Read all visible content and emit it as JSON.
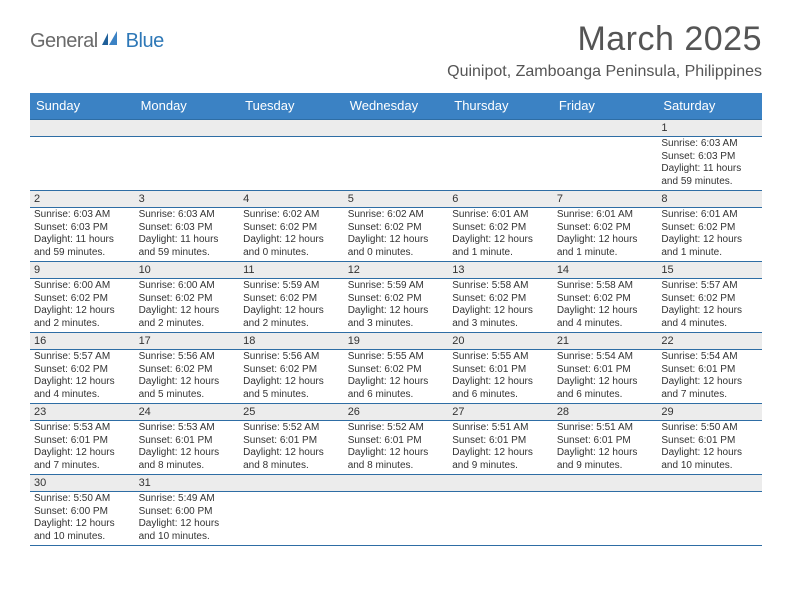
{
  "logo": {
    "text1": "General",
    "text2": "Blue"
  },
  "title": "March 2025",
  "location": "Quinipot, Zamboanga Peninsula, Philippines",
  "colors": {
    "header_bg": "#3b82c4",
    "header_text": "#ffffff",
    "daynum_bg": "#ececec",
    "rule": "#2e6da4",
    "logo_gray": "#6a6a6a",
    "logo_blue": "#2e78b7"
  },
  "weekdays": [
    "Sunday",
    "Monday",
    "Tuesday",
    "Wednesday",
    "Thursday",
    "Friday",
    "Saturday"
  ],
  "weeks": [
    [
      null,
      null,
      null,
      null,
      null,
      null,
      {
        "d": "1",
        "sr": "Sunrise: 6:03 AM",
        "ss": "Sunset: 6:03 PM",
        "dl": "Daylight: 11 hours and 59 minutes."
      }
    ],
    [
      {
        "d": "2",
        "sr": "Sunrise: 6:03 AM",
        "ss": "Sunset: 6:03 PM",
        "dl": "Daylight: 11 hours and 59 minutes."
      },
      {
        "d": "3",
        "sr": "Sunrise: 6:03 AM",
        "ss": "Sunset: 6:03 PM",
        "dl": "Daylight: 11 hours and 59 minutes."
      },
      {
        "d": "4",
        "sr": "Sunrise: 6:02 AM",
        "ss": "Sunset: 6:02 PM",
        "dl": "Daylight: 12 hours and 0 minutes."
      },
      {
        "d": "5",
        "sr": "Sunrise: 6:02 AM",
        "ss": "Sunset: 6:02 PM",
        "dl": "Daylight: 12 hours and 0 minutes."
      },
      {
        "d": "6",
        "sr": "Sunrise: 6:01 AM",
        "ss": "Sunset: 6:02 PM",
        "dl": "Daylight: 12 hours and 1 minute."
      },
      {
        "d": "7",
        "sr": "Sunrise: 6:01 AM",
        "ss": "Sunset: 6:02 PM",
        "dl": "Daylight: 12 hours and 1 minute."
      },
      {
        "d": "8",
        "sr": "Sunrise: 6:01 AM",
        "ss": "Sunset: 6:02 PM",
        "dl": "Daylight: 12 hours and 1 minute."
      }
    ],
    [
      {
        "d": "9",
        "sr": "Sunrise: 6:00 AM",
        "ss": "Sunset: 6:02 PM",
        "dl": "Daylight: 12 hours and 2 minutes."
      },
      {
        "d": "10",
        "sr": "Sunrise: 6:00 AM",
        "ss": "Sunset: 6:02 PM",
        "dl": "Daylight: 12 hours and 2 minutes."
      },
      {
        "d": "11",
        "sr": "Sunrise: 5:59 AM",
        "ss": "Sunset: 6:02 PM",
        "dl": "Daylight: 12 hours and 2 minutes."
      },
      {
        "d": "12",
        "sr": "Sunrise: 5:59 AM",
        "ss": "Sunset: 6:02 PM",
        "dl": "Daylight: 12 hours and 3 minutes."
      },
      {
        "d": "13",
        "sr": "Sunrise: 5:58 AM",
        "ss": "Sunset: 6:02 PM",
        "dl": "Daylight: 12 hours and 3 minutes."
      },
      {
        "d": "14",
        "sr": "Sunrise: 5:58 AM",
        "ss": "Sunset: 6:02 PM",
        "dl": "Daylight: 12 hours and 4 minutes."
      },
      {
        "d": "15",
        "sr": "Sunrise: 5:57 AM",
        "ss": "Sunset: 6:02 PM",
        "dl": "Daylight: 12 hours and 4 minutes."
      }
    ],
    [
      {
        "d": "16",
        "sr": "Sunrise: 5:57 AM",
        "ss": "Sunset: 6:02 PM",
        "dl": "Daylight: 12 hours and 4 minutes."
      },
      {
        "d": "17",
        "sr": "Sunrise: 5:56 AM",
        "ss": "Sunset: 6:02 PM",
        "dl": "Daylight: 12 hours and 5 minutes."
      },
      {
        "d": "18",
        "sr": "Sunrise: 5:56 AM",
        "ss": "Sunset: 6:02 PM",
        "dl": "Daylight: 12 hours and 5 minutes."
      },
      {
        "d": "19",
        "sr": "Sunrise: 5:55 AM",
        "ss": "Sunset: 6:02 PM",
        "dl": "Daylight: 12 hours and 6 minutes."
      },
      {
        "d": "20",
        "sr": "Sunrise: 5:55 AM",
        "ss": "Sunset: 6:01 PM",
        "dl": "Daylight: 12 hours and 6 minutes."
      },
      {
        "d": "21",
        "sr": "Sunrise: 5:54 AM",
        "ss": "Sunset: 6:01 PM",
        "dl": "Daylight: 12 hours and 6 minutes."
      },
      {
        "d": "22",
        "sr": "Sunrise: 5:54 AM",
        "ss": "Sunset: 6:01 PM",
        "dl": "Daylight: 12 hours and 7 minutes."
      }
    ],
    [
      {
        "d": "23",
        "sr": "Sunrise: 5:53 AM",
        "ss": "Sunset: 6:01 PM",
        "dl": "Daylight: 12 hours and 7 minutes."
      },
      {
        "d": "24",
        "sr": "Sunrise: 5:53 AM",
        "ss": "Sunset: 6:01 PM",
        "dl": "Daylight: 12 hours and 8 minutes."
      },
      {
        "d": "25",
        "sr": "Sunrise: 5:52 AM",
        "ss": "Sunset: 6:01 PM",
        "dl": "Daylight: 12 hours and 8 minutes."
      },
      {
        "d": "26",
        "sr": "Sunrise: 5:52 AM",
        "ss": "Sunset: 6:01 PM",
        "dl": "Daylight: 12 hours and 8 minutes."
      },
      {
        "d": "27",
        "sr": "Sunrise: 5:51 AM",
        "ss": "Sunset: 6:01 PM",
        "dl": "Daylight: 12 hours and 9 minutes."
      },
      {
        "d": "28",
        "sr": "Sunrise: 5:51 AM",
        "ss": "Sunset: 6:01 PM",
        "dl": "Daylight: 12 hours and 9 minutes."
      },
      {
        "d": "29",
        "sr": "Sunrise: 5:50 AM",
        "ss": "Sunset: 6:01 PM",
        "dl": "Daylight: 12 hours and 10 minutes."
      }
    ],
    [
      {
        "d": "30",
        "sr": "Sunrise: 5:50 AM",
        "ss": "Sunset: 6:00 PM",
        "dl": "Daylight: 12 hours and 10 minutes."
      },
      {
        "d": "31",
        "sr": "Sunrise: 5:49 AM",
        "ss": "Sunset: 6:00 PM",
        "dl": "Daylight: 12 hours and 10 minutes."
      },
      null,
      null,
      null,
      null,
      null
    ]
  ]
}
